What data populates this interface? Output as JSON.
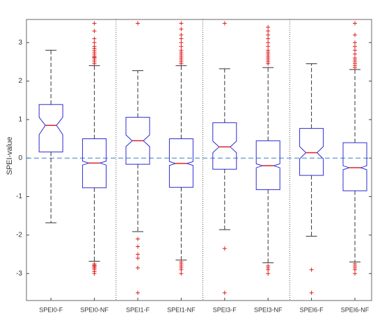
{
  "chart_data": {
    "type": "boxplot",
    "y_label": "SPEI-value",
    "categories": [
      "SPEI0-F",
      "SPEI0-NF",
      "SPEI1-F",
      "SPEI1-NF",
      "SPEI3-F",
      "SPEI3-NF",
      "SPEI6-F",
      "SPEI6-NF"
    ],
    "ylim": [
      -3.7,
      3.6
    ],
    "yticks": [
      -3,
      -2,
      -1,
      0,
      1,
      2,
      3
    ],
    "reference_line": 0,
    "box_color": "#2b2bd6",
    "median_color": "#e0202a",
    "whisker_color": "#333333",
    "outlier_color": "#e02020",
    "reference_color": "#3a7fc0",
    "boxes": [
      {
        "whisker_low": -1.68,
        "q1": 0.16,
        "notch": [
          0.61,
          1.06
        ],
        "median": 0.85,
        "q3": 1.39,
        "whisker_high": 2.8,
        "outliers": []
      },
      {
        "whisker_low": -2.68,
        "q1": -0.77,
        "notch": [
          -0.18,
          -0.08
        ],
        "median": -0.13,
        "q3": 0.5,
        "whisker_high": 2.4,
        "outliers": [
          2.45,
          2.5,
          2.55,
          2.6,
          2.62,
          2.65,
          2.7,
          2.75,
          2.8,
          2.85,
          2.9,
          3.0,
          3.1,
          3.3,
          3.5,
          -2.75,
          -2.78,
          -2.8,
          -2.83,
          -2.86,
          -2.9,
          -2.95,
          -3.0
        ]
      },
      {
        "whisker_low": -1.91,
        "q1": -0.16,
        "notch": [
          0.3,
          0.6
        ],
        "median": 0.45,
        "q3": 1.06,
        "whisker_high": 2.27,
        "outliers": [
          3.5,
          -2.1,
          -2.3,
          -2.5,
          -2.6,
          -2.85,
          -3.5
        ]
      },
      {
        "whisker_low": -2.65,
        "q1": -0.76,
        "notch": [
          -0.19,
          -0.09
        ],
        "median": -0.14,
        "q3": 0.5,
        "whisker_high": 2.4,
        "outliers": [
          2.45,
          2.5,
          2.55,
          2.6,
          2.65,
          2.7,
          2.75,
          2.8,
          2.9,
          3.0,
          3.1,
          3.2,
          3.35,
          3.5,
          -2.7,
          -2.75,
          -2.8,
          -2.85,
          -2.9,
          -3.0
        ]
      },
      {
        "whisker_low": -1.86,
        "q1": -0.29,
        "notch": [
          0.14,
          0.44
        ],
        "median": 0.29,
        "q3": 0.92,
        "whisker_high": 2.32,
        "outliers": [
          3.5,
          -2.35,
          -3.5
        ]
      },
      {
        "whisker_low": -2.72,
        "q1": -0.82,
        "notch": [
          -0.25,
          -0.15
        ],
        "median": -0.2,
        "q3": 0.45,
        "whisker_high": 2.35,
        "outliers": [
          2.45,
          2.5,
          2.55,
          2.6,
          2.65,
          2.7,
          2.75,
          2.8,
          2.9,
          3.0,
          3.1,
          3.2,
          3.3,
          3.4,
          -2.8,
          -2.85,
          -2.9,
          -3.0
        ]
      },
      {
        "whisker_low": -2.03,
        "q1": -0.45,
        "notch": [
          -0.02,
          0.3
        ],
        "median": 0.14,
        "q3": 0.77,
        "whisker_high": 2.45,
        "outliers": [
          -2.9,
          -3.5
        ]
      },
      {
        "whisker_low": -2.7,
        "q1": -0.85,
        "notch": [
          -0.3,
          -0.2
        ],
        "median": -0.25,
        "q3": 0.4,
        "whisker_high": 2.3,
        "outliers": [
          2.35,
          2.4,
          2.45,
          2.5,
          2.55,
          2.6,
          2.7,
          2.8,
          2.9,
          3.0,
          3.2,
          3.5,
          -2.75,
          -2.8,
          -2.85,
          -2.9,
          -3.0
        ]
      }
    ]
  }
}
